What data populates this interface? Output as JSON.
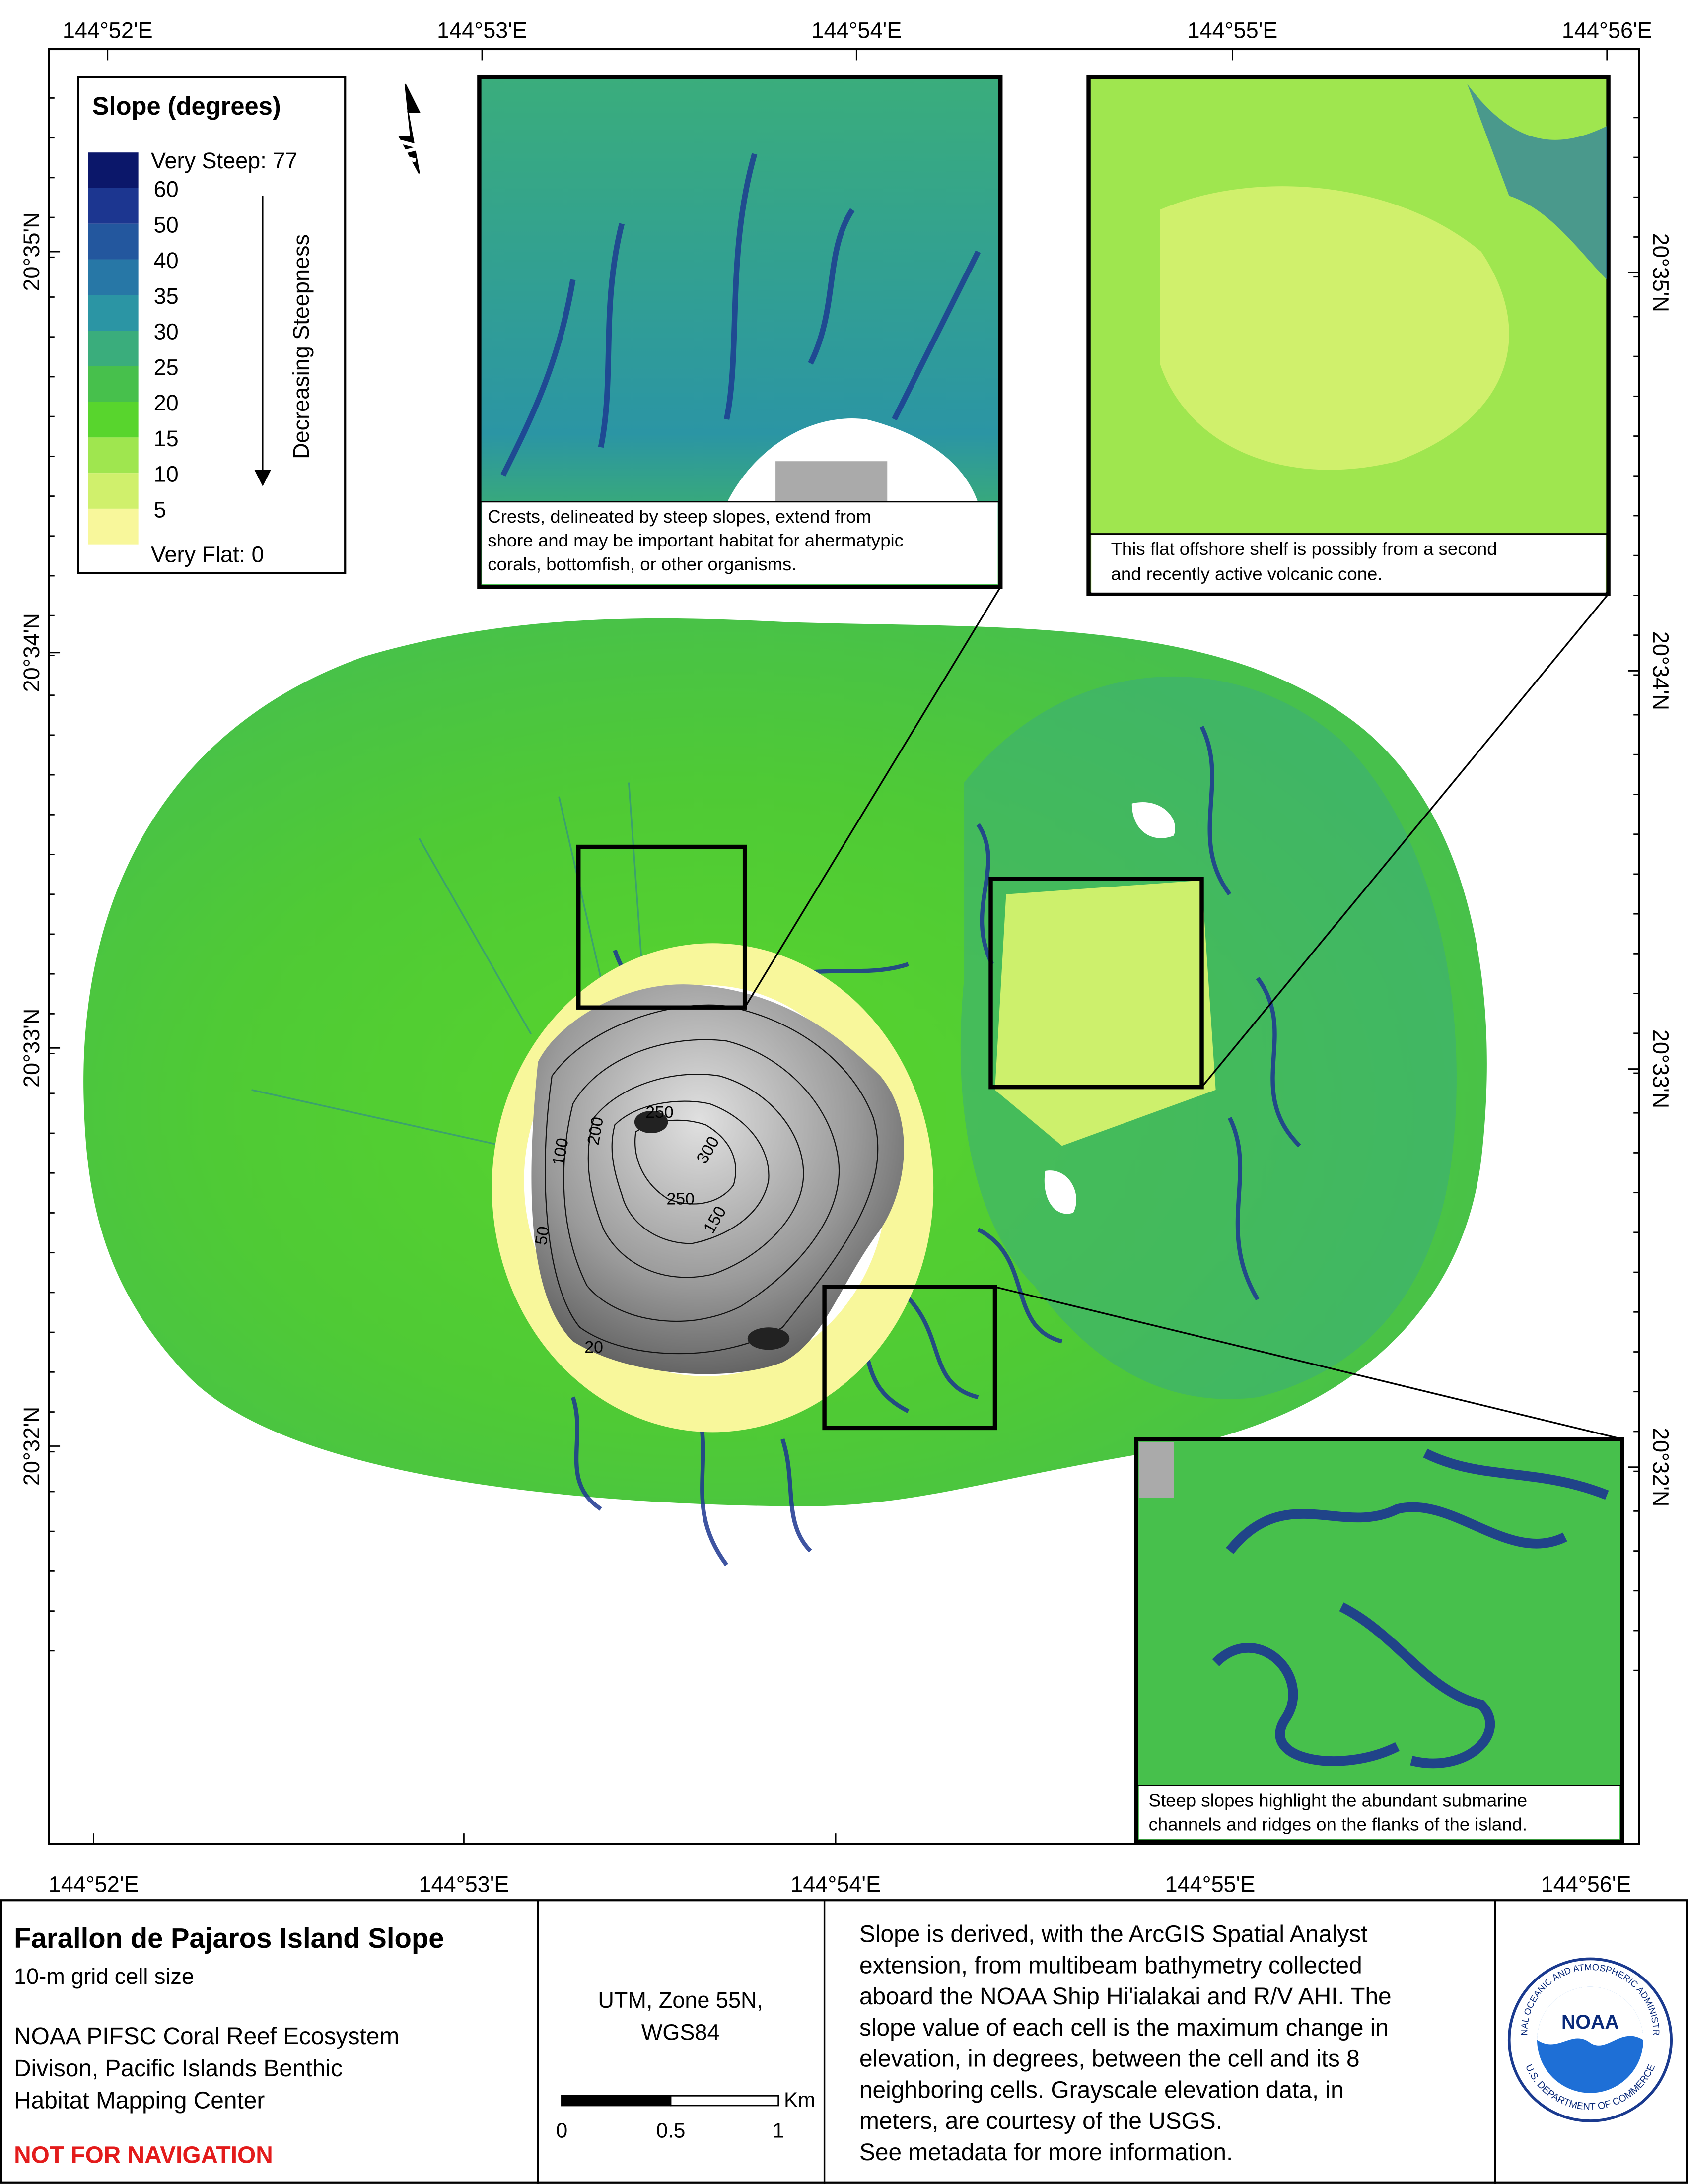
{
  "map": {
    "top_labels": [
      "144°52'E",
      "144°53'E",
      "144°54'E",
      "144°55'E",
      "144°56'E"
    ],
    "bottom_labels": [
      "144°52'E",
      "144°53'E",
      "144°54'E",
      "144°55'E",
      "144°56'E"
    ],
    "left_labels": [
      "20°35'N",
      "20°34'N",
      "20°33'N",
      "20°32'N"
    ],
    "right_labels": [
      "20°35'N",
      "20°34'N",
      "20°33'N",
      "20°32'N"
    ],
    "contour_labels": [
      "50",
      "100",
      "200",
      "250",
      "300",
      "150",
      "250",
      "20"
    ],
    "north": "N"
  },
  "legend": {
    "title": "Slope (degrees)",
    "labels": [
      "Very Steep: 77",
      "60",
      "50",
      "40",
      "35",
      "30",
      "25",
      "20",
      "15",
      "10",
      "5",
      "Very Flat: 0"
    ],
    "colors": [
      "#0b176a",
      "#1c3690",
      "#23579e",
      "#2777a6",
      "#2b95a4",
      "#3aad7c",
      "#47c04c",
      "#58d52d",
      "#9fe64f",
      "#d0f06c",
      "#f8f79b"
    ],
    "arrow_label": "Decreasing Steepness"
  },
  "insets": [
    {
      "caption": [
        "Crests, delineated by steep slopes, extend from",
        "shore and may be important habitat for ahermatypic",
        "corals, bottomfish, or other organisms."
      ]
    },
    {
      "caption": [
        "This flat offshore shelf is possibly from a second",
        "and recently active volcanic cone."
      ]
    },
    {
      "caption": [
        "Steep slopes highlight the abundant submarine",
        "channels and ridges on the flanks of the island."
      ]
    }
  ],
  "footer": {
    "title": "Farallon de Pajaros Island Slope",
    "subtitle": "10-m grid cell size",
    "credit": [
      "NOAA PIFSC Coral Reef Ecosystem",
      "Divison, Pacific Islands Benthic",
      "Habitat Mapping Center"
    ],
    "warning": "NOT FOR NAVIGATION",
    "projection": [
      "UTM, Zone 55N,",
      "WGS84"
    ],
    "scale": {
      "ticks": [
        0,
        0.5,
        1
      ],
      "unit": "Km"
    },
    "description": [
      "Slope is derived, with the ArcGIS Spatial Analyst",
      "extension, from multibeam bathymetry collected",
      "aboard the NOAA Ship Hi'ialakai and R/V AHI. The",
      "slope value of each cell is the maximum change in",
      "elevation, in degrees, between the cell and its 8",
      "neighboring cells. Grayscale elevation data, in",
      "meters, are courtesy of the USGS.",
      "See metadata for more information."
    ],
    "logo": {
      "center": "NOAA",
      "top": "NATIONAL OCEANIC AND ATMOSPHERIC ADMINISTRATION",
      "bottom": "U.S. DEPARTMENT OF COMMERCE"
    }
  }
}
